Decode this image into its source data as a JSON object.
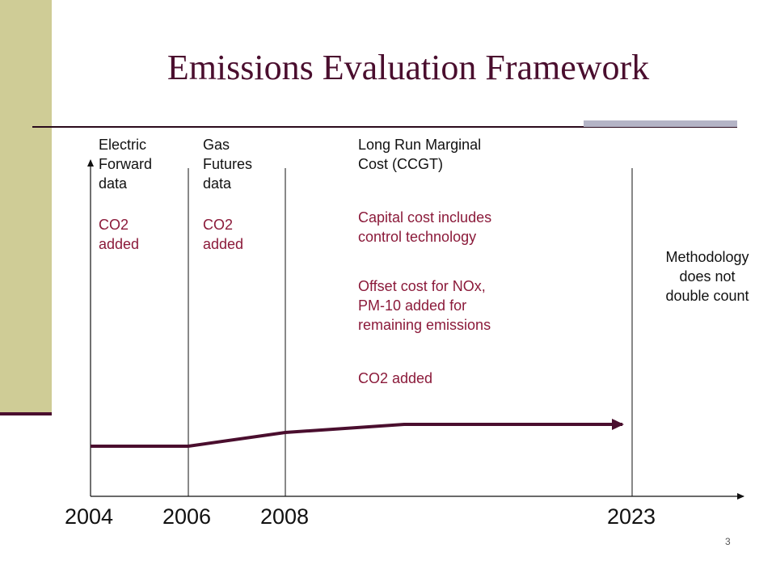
{
  "slide": {
    "title": "Emissions Evaluation Framework",
    "page_number": "3"
  },
  "labels": {
    "electric": {
      "heading": [
        "Electric",
        "Forward",
        "data"
      ],
      "note": [
        "CO2",
        "added"
      ]
    },
    "gas": {
      "heading": [
        "Gas",
        "Futures",
        "data"
      ],
      "note": [
        "CO2",
        "added"
      ]
    },
    "lrmc": {
      "heading": [
        "Long Run Marginal",
        "Cost (CCGT)"
      ],
      "capital": [
        "Capital cost includes",
        "control technology"
      ],
      "offset": [
        "Offset cost for NOx,",
        "PM-10 added for",
        "remaining emissions"
      ],
      "co2": "CO2 added"
    },
    "methodology": [
      "Methodology",
      "does not",
      "double count"
    ]
  },
  "axis": {
    "years": [
      "2004",
      "2006",
      "2008",
      "2023"
    ]
  },
  "colors": {
    "sidebar": "#cfcc96",
    "accent_dark": "#4a0e2e",
    "title_accent_bar": "#b4b4c6",
    "note_red": "#8b1a3a"
  }
}
